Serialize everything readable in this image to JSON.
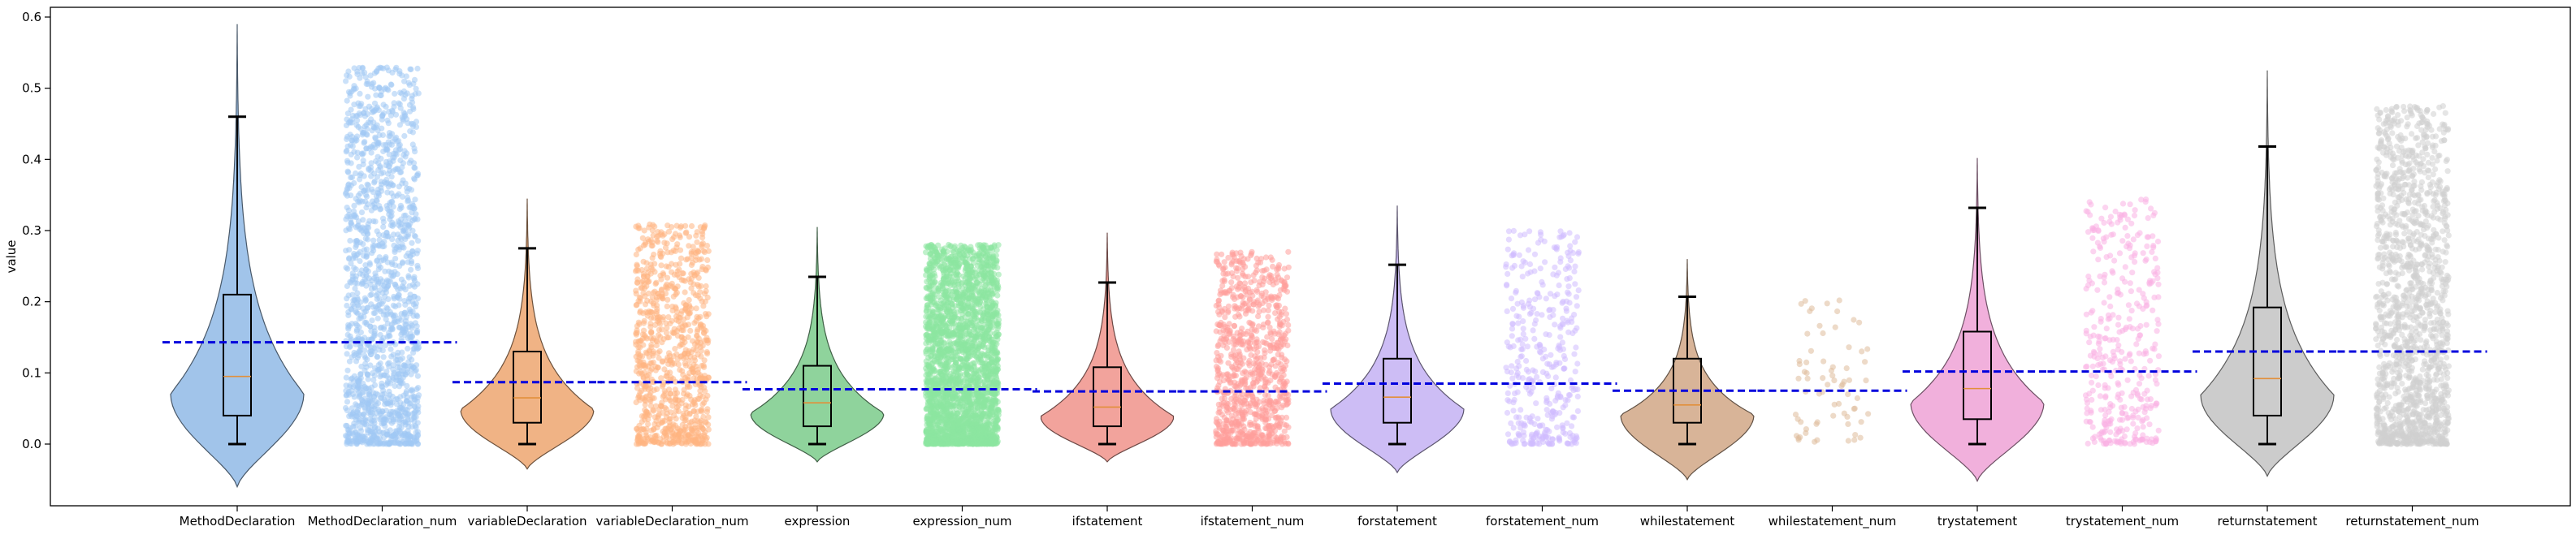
{
  "chart_data": {
    "type": "violin",
    "xlabel": "",
    "ylabel": "value",
    "ylim": [
      -0.08,
      0.62
    ],
    "yticks": [
      0.0,
      0.1,
      0.2,
      0.3,
      0.4,
      0.5,
      0.6
    ],
    "ytick_labels": [
      "0.0",
      "0.1",
      "0.2",
      "0.3",
      "0.4",
      "0.5",
      "0.6"
    ],
    "grid": false,
    "categories": [
      "MethodDeclaration",
      "MethodDeclaration_num",
      "variableDeclaration",
      "variableDeclaration_num",
      "expression",
      "expression_num",
      "ifstatement",
      "ifstatement_num",
      "forstatement",
      "forstatement_num",
      "whilestatement",
      "whilestatement_num",
      "trystatement",
      "trystatement_num",
      "returnstatement",
      "returnstatement_num"
    ],
    "series": [
      {
        "category": "MethodDeclaration",
        "kind": "violin",
        "color": "#a1c4ea",
        "min": 0.0,
        "q1": 0.04,
        "median": 0.095,
        "q3": 0.21,
        "whisker_high": 0.46,
        "kde_low": -0.06,
        "kde_high": 0.59,
        "mean": 0.143
      },
      {
        "category": "MethodDeclaration_num",
        "kind": "strip",
        "color": "#a1c9f4",
        "min": 0.0,
        "max": 0.53,
        "mean": 0.143,
        "density": "high"
      },
      {
        "category": "variableDeclaration",
        "kind": "violin",
        "color": "#f0b385",
        "min": 0.0,
        "q1": 0.03,
        "median": 0.065,
        "q3": 0.13,
        "whisker_high": 0.275,
        "kde_low": -0.035,
        "kde_high": 0.345,
        "mean": 0.087
      },
      {
        "category": "variableDeclaration_num",
        "kind": "strip",
        "color": "#ffb482",
        "min": 0.0,
        "max": 0.31,
        "mean": 0.087,
        "density": "medium"
      },
      {
        "category": "expression",
        "kind": "violin",
        "color": "#8fd39c",
        "min": 0.0,
        "q1": 0.025,
        "median": 0.058,
        "q3": 0.11,
        "whisker_high": 0.235,
        "kde_low": -0.025,
        "kde_high": 0.305,
        "mean": 0.077
      },
      {
        "category": "expression_num",
        "kind": "strip",
        "color": "#8de5a1",
        "min": 0.0,
        "max": 0.28,
        "mean": 0.077,
        "density": "very-high"
      },
      {
        "category": "ifstatement",
        "kind": "violin",
        "color": "#f2a39c",
        "min": 0.0,
        "q1": 0.025,
        "median": 0.052,
        "q3": 0.108,
        "whisker_high": 0.227,
        "kde_low": -0.025,
        "kde_high": 0.297,
        "mean": 0.074
      },
      {
        "category": "ifstatement_num",
        "kind": "strip",
        "color": "#ff9f9b",
        "min": 0.0,
        "max": 0.27,
        "mean": 0.074,
        "density": "medium"
      },
      {
        "category": "forstatement",
        "kind": "violin",
        "color": "#cdbdf5",
        "min": 0.0,
        "q1": 0.03,
        "median": 0.066,
        "q3": 0.12,
        "whisker_high": 0.252,
        "kde_low": -0.04,
        "kde_high": 0.335,
        "mean": 0.085
      },
      {
        "category": "forstatement_num",
        "kind": "strip",
        "color": "#d0bbff",
        "min": 0.0,
        "max": 0.3,
        "mean": 0.085,
        "density": "low"
      },
      {
        "category": "whilestatement",
        "kind": "violin",
        "color": "#d8b498",
        "min": 0.0,
        "q1": 0.03,
        "median": 0.055,
        "q3": 0.12,
        "whisker_high": 0.207,
        "kde_low": -0.05,
        "kde_high": 0.26,
        "mean": 0.075
      },
      {
        "category": "whilestatement_num",
        "kind": "strip",
        "color": "#debb9b",
        "min": 0.0,
        "max": 0.205,
        "mean": 0.075,
        "density": "very-low"
      },
      {
        "category": "trystatement",
        "kind": "violin",
        "color": "#f1b0dc",
        "min": 0.0,
        "q1": 0.035,
        "median": 0.078,
        "q3": 0.158,
        "whisker_high": 0.332,
        "kde_low": -0.052,
        "kde_high": 0.402,
        "mean": 0.102
      },
      {
        "category": "trystatement_num",
        "kind": "strip",
        "color": "#fab0e4",
        "min": 0.0,
        "max": 0.345,
        "mean": 0.102,
        "density": "low"
      },
      {
        "category": "returnstatement",
        "kind": "violin",
        "color": "#cccccc",
        "min": 0.0,
        "q1": 0.04,
        "median": 0.092,
        "q3": 0.192,
        "whisker_high": 0.418,
        "kde_low": -0.045,
        "kde_high": 0.525,
        "mean": 0.13
      },
      {
        "category": "returnstatement_num",
        "kind": "strip",
        "color": "#cfcfcf",
        "min": 0.0,
        "max": 0.475,
        "mean": 0.13,
        "density": "high"
      }
    ],
    "mean_line_color": "#0000dd"
  }
}
